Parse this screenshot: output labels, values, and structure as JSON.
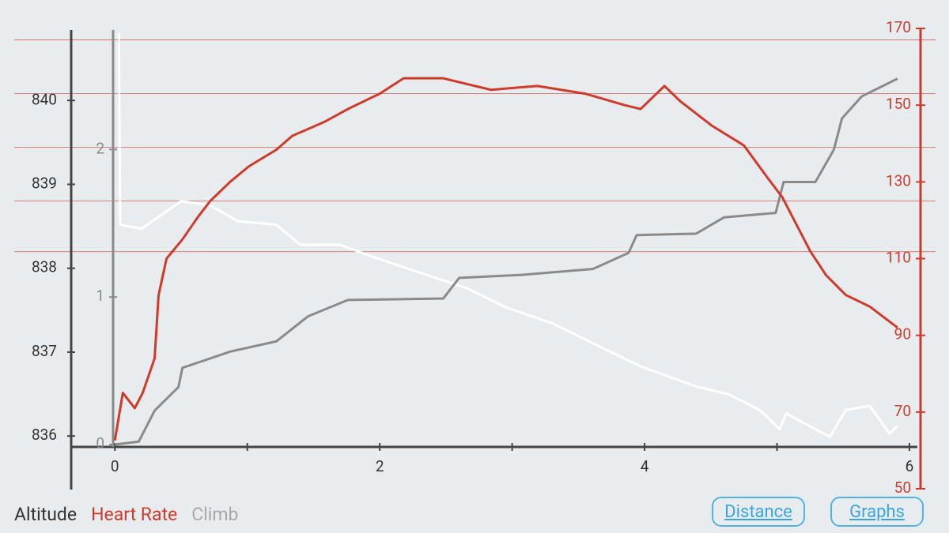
{
  "chart_data": {
    "type": "line",
    "xlim": [
      -0.33,
      6.06
    ],
    "xticks": [
      0,
      2,
      4,
      6
    ],
    "xminor": [
      1,
      3,
      5
    ],
    "ylim": [
      835.87,
      840.84
    ],
    "yticks": [
      836,
      837,
      838,
      839,
      840
    ],
    "y2lim": [
      50,
      170
    ],
    "y2ticks": [
      50,
      70,
      90,
      110,
      130,
      150,
      170
    ],
    "y3lim": [
      -0.016,
      2.81
    ],
    "y3ticks": [
      0,
      1,
      2
    ],
    "hr_zones": [
      111.8,
      125,
      139,
      153,
      167
    ],
    "series": [
      {
        "name": "Altitude",
        "color": "#ffffff",
        "axis": "y",
        "x": [
          0.03,
          0.04,
          0.2,
          0.5,
          0.72,
          0.93,
          1.22,
          1.4,
          1.7,
          1.94,
          2.3,
          2.66,
          2.96,
          3.31,
          3.67,
          3.97,
          4.39,
          4.63,
          4.87,
          5.02,
          5.07,
          5.29,
          5.4,
          5.52,
          5.7,
          5.85,
          5.91
        ],
        "values": [
          840.8,
          838.52,
          838.47,
          838.8,
          838.75,
          838.56,
          838.52,
          838.28,
          838.28,
          838.14,
          837.95,
          837.76,
          837.53,
          837.34,
          837.06,
          836.83,
          836.59,
          836.5,
          836.31,
          836.08,
          836.27,
          836.08,
          835.99,
          836.31,
          836.36,
          836.03,
          836.12
        ]
      },
      {
        "name": "Heart Rate",
        "color": "#d03a2b",
        "axis": "y2",
        "x": [
          0,
          0.06,
          0.15,
          0.21,
          0.3,
          0.33,
          0.39,
          0.51,
          0.63,
          0.72,
          0.87,
          1.01,
          1.22,
          1.34,
          1.58,
          1.76,
          2.0,
          2.18,
          2.48,
          2.84,
          3.19,
          3.55,
          3.85,
          3.97,
          4.15,
          4.27,
          4.51,
          4.75,
          4.93,
          5.04,
          5.16,
          5.25,
          5.37,
          5.52,
          5.7,
          5.91
        ],
        "values": [
          62.6,
          75,
          71,
          75,
          84,
          100.5,
          110,
          115,
          121,
          125,
          130,
          134,
          138.4,
          142,
          145.6,
          149,
          153,
          157,
          157,
          154,
          155,
          153,
          150,
          149,
          155,
          151,
          144.6,
          139.5,
          131,
          126,
          118,
          112,
          105.7,
          100.5,
          97.5,
          92
        ]
      },
      {
        "name": "Climb",
        "color": "#8a8a8a",
        "legend_color": "#a9a9a9",
        "axis": "y3",
        "x": [
          0,
          0.18,
          0.3,
          0.48,
          0.51,
          0.87,
          1.22,
          1.46,
          1.76,
          2.48,
          2.6,
          3.07,
          3.61,
          3.88,
          3.94,
          4.39,
          4.6,
          4.99,
          5.05,
          5.29,
          5.43,
          5.49,
          5.64,
          5.91
        ],
        "values": [
          0,
          0.02,
          0.23,
          0.39,
          0.52,
          0.63,
          0.7,
          0.87,
          0.98,
          0.99,
          1.13,
          1.15,
          1.19,
          1.3,
          1.42,
          1.43,
          1.54,
          1.57,
          1.78,
          1.78,
          2.0,
          2.21,
          2.36,
          2.48
        ]
      }
    ]
  },
  "buttons": [
    "Distance",
    "Graphs"
  ]
}
